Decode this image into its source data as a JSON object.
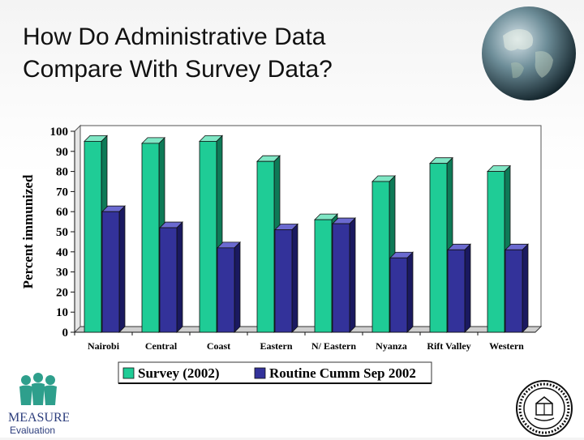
{
  "slide": {
    "title_line1": "How Do Administrative Data",
    "title_line2": "Compare With Survey Data?"
  },
  "logos": {
    "measure_text": "MEASURE",
    "evaluation_text": "Evaluation"
  },
  "colors": {
    "survey_face": "#1fcc96",
    "survey_side": "#0e7a57",
    "survey_top": "#7fe6c4",
    "routine_face": "#33329a",
    "routine_side": "#1a1960",
    "routine_top": "#6b6ad0"
  },
  "chart_data": {
    "type": "bar",
    "title": "",
    "xlabel": "",
    "ylabel": "Percent immunized",
    "ylim": [
      0,
      100
    ],
    "yticks": [
      0,
      10,
      20,
      30,
      40,
      50,
      60,
      70,
      80,
      90,
      100
    ],
    "categories": [
      "Nairobi",
      "Central",
      "Coast",
      "Eastern",
      "N/ Eastern",
      "Nyanza",
      "Rift Valley",
      "Western"
    ],
    "series": [
      {
        "name": "Survey (2002)",
        "values": [
          95,
          94,
          95,
          85,
          56,
          75,
          84,
          80
        ]
      },
      {
        "name": "Routine Cumm Sep 2002",
        "values": [
          60,
          52,
          42,
          51,
          54,
          37,
          41,
          41
        ]
      }
    ],
    "grid": false,
    "legend": "bottom",
    "style": "3d"
  }
}
